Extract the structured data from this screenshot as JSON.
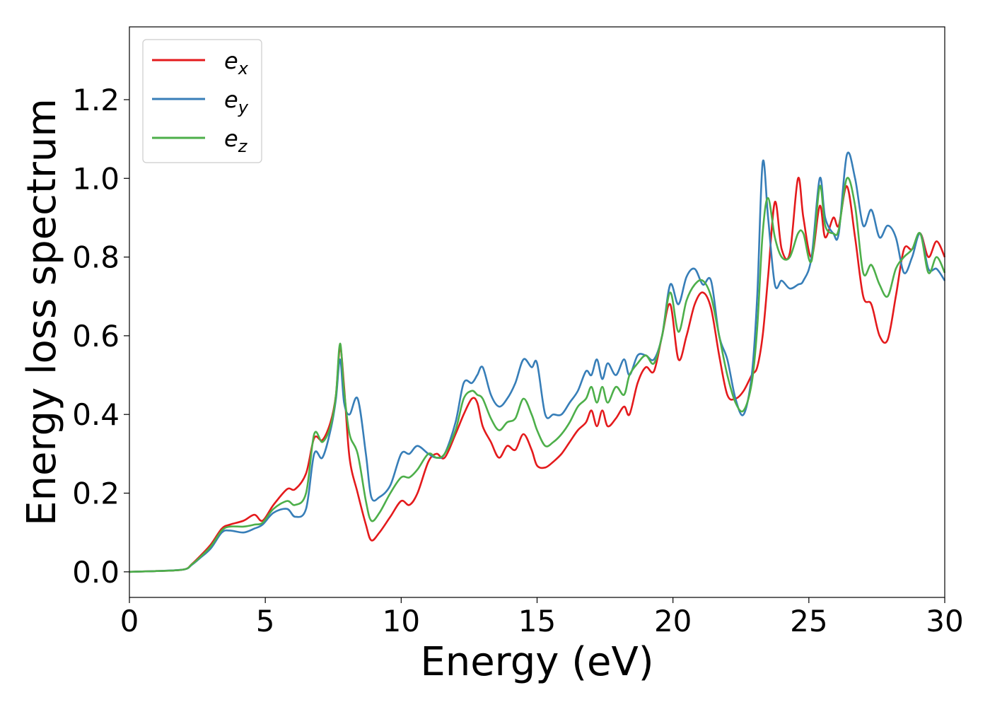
{
  "chart_data": {
    "type": "line",
    "title": "",
    "xlabel": "Energy (eV)",
    "ylabel": "Energy loss spectrum",
    "xlim": [
      0,
      30
    ],
    "ylim": [
      -0.065,
      1.385
    ],
    "xticks": [
      0,
      5,
      10,
      15,
      20,
      25,
      30
    ],
    "xtick_labels": [
      "0",
      "5",
      "10",
      "15",
      "20",
      "25",
      "30"
    ],
    "yticks": [
      0.0,
      0.2,
      0.4,
      0.6,
      0.8,
      1.0,
      1.2
    ],
    "ytick_labels": [
      "0.0",
      "0.2",
      "0.4",
      "0.6",
      "0.8",
      "1.0",
      "1.2"
    ],
    "grid": false,
    "legend": "top-left",
    "series": [
      {
        "name": "e_x",
        "label_main": "e",
        "label_sub": "x",
        "color": "#e41a1c",
        "x": [
          0,
          1,
          2,
          2.3,
          2.6,
          3.0,
          3.4,
          3.7,
          4.2,
          4.6,
          4.9,
          5.3,
          5.8,
          6.1,
          6.5,
          6.8,
          7.1,
          7.4,
          7.6,
          7.75,
          7.9,
          8.1,
          8.4,
          8.7,
          8.9,
          9.2,
          9.6,
          10.0,
          10.3,
          10.6,
          11.0,
          11.3,
          11.6,
          12.0,
          12.3,
          12.6,
          12.8,
          13.0,
          13.3,
          13.6,
          13.9,
          14.2,
          14.5,
          14.8,
          15.0,
          15.3,
          15.6,
          15.9,
          16.2,
          16.5,
          16.8,
          17.0,
          17.2,
          17.4,
          17.6,
          17.9,
          18.2,
          18.4,
          18.7,
          19.0,
          19.3,
          19.6,
          19.9,
          20.2,
          20.5,
          20.8,
          21.1,
          21.4,
          21.7,
          22.0,
          22.3,
          22.6,
          22.9,
          23.1,
          23.3,
          23.5,
          23.75,
          24.0,
          24.3,
          24.6,
          24.8,
          25.1,
          25.4,
          25.6,
          25.9,
          26.1,
          26.4,
          26.7,
          27.0,
          27.3,
          27.6,
          27.9,
          28.2,
          28.5,
          28.8,
          29.1,
          29.4,
          29.7,
          30.0
        ],
        "y": [
          0,
          0.002,
          0.006,
          0.02,
          0.04,
          0.07,
          0.11,
          0.12,
          0.13,
          0.145,
          0.13,
          0.17,
          0.21,
          0.21,
          0.25,
          0.34,
          0.335,
          0.38,
          0.45,
          0.57,
          0.47,
          0.29,
          0.2,
          0.12,
          0.08,
          0.1,
          0.14,
          0.18,
          0.17,
          0.2,
          0.28,
          0.3,
          0.29,
          0.35,
          0.4,
          0.44,
          0.43,
          0.37,
          0.33,
          0.29,
          0.32,
          0.31,
          0.35,
          0.31,
          0.27,
          0.265,
          0.28,
          0.3,
          0.33,
          0.36,
          0.38,
          0.41,
          0.37,
          0.41,
          0.37,
          0.39,
          0.42,
          0.4,
          0.48,
          0.52,
          0.51,
          0.6,
          0.68,
          0.54,
          0.6,
          0.68,
          0.71,
          0.67,
          0.55,
          0.45,
          0.44,
          0.46,
          0.5,
          0.52,
          0.6,
          0.75,
          0.94,
          0.82,
          0.81,
          1.0,
          0.9,
          0.8,
          0.93,
          0.85,
          0.9,
          0.88,
          0.98,
          0.85,
          0.7,
          0.68,
          0.6,
          0.59,
          0.7,
          0.82,
          0.82,
          0.86,
          0.8,
          0.84,
          0.8
        ]
      },
      {
        "name": "e_y",
        "label_main": "e",
        "label_sub": "y",
        "color": "#377eb8",
        "x": [
          0,
          1,
          2,
          2.3,
          2.6,
          3.0,
          3.4,
          3.7,
          4.2,
          4.6,
          4.9,
          5.3,
          5.8,
          6.1,
          6.5,
          6.8,
          7.1,
          7.4,
          7.6,
          7.75,
          7.9,
          8.1,
          8.4,
          8.7,
          8.9,
          9.2,
          9.6,
          10.0,
          10.3,
          10.6,
          11.0,
          11.3,
          11.6,
          12.0,
          12.3,
          12.6,
          12.8,
          13.0,
          13.3,
          13.6,
          13.9,
          14.2,
          14.5,
          14.8,
          15.0,
          15.3,
          15.6,
          15.9,
          16.2,
          16.5,
          16.8,
          17.0,
          17.2,
          17.4,
          17.6,
          17.9,
          18.2,
          18.4,
          18.7,
          19.0,
          19.3,
          19.6,
          19.9,
          20.2,
          20.5,
          20.8,
          21.1,
          21.4,
          21.7,
          22.0,
          22.3,
          22.6,
          22.9,
          23.1,
          23.3,
          23.5,
          23.75,
          24.0,
          24.3,
          24.6,
          24.8,
          25.1,
          25.4,
          25.6,
          25.9,
          26.1,
          26.4,
          26.7,
          27.0,
          27.3,
          27.6,
          27.9,
          28.2,
          28.5,
          28.8,
          29.1,
          29.4,
          29.7,
          30.0
        ],
        "y": [
          0,
          0.002,
          0.006,
          0.018,
          0.035,
          0.06,
          0.1,
          0.105,
          0.1,
          0.11,
          0.12,
          0.15,
          0.16,
          0.14,
          0.16,
          0.3,
          0.29,
          0.36,
          0.44,
          0.54,
          0.43,
          0.4,
          0.44,
          0.3,
          0.19,
          0.19,
          0.22,
          0.3,
          0.3,
          0.32,
          0.3,
          0.29,
          0.3,
          0.38,
          0.48,
          0.48,
          0.5,
          0.52,
          0.45,
          0.42,
          0.44,
          0.48,
          0.54,
          0.52,
          0.53,
          0.4,
          0.4,
          0.4,
          0.43,
          0.46,
          0.51,
          0.5,
          0.54,
          0.49,
          0.53,
          0.5,
          0.54,
          0.5,
          0.55,
          0.55,
          0.54,
          0.6,
          0.73,
          0.68,
          0.75,
          0.77,
          0.73,
          0.74,
          0.6,
          0.54,
          0.44,
          0.4,
          0.5,
          0.7,
          1.04,
          0.9,
          0.73,
          0.74,
          0.72,
          0.73,
          0.74,
          0.8,
          1.0,
          0.9,
          0.86,
          0.86,
          1.06,
          1.0,
          0.88,
          0.92,
          0.85,
          0.88,
          0.85,
          0.76,
          0.8,
          0.86,
          0.77,
          0.77,
          0.74
        ]
      },
      {
        "name": "e_z",
        "label_main": "e",
        "label_sub": "z",
        "color": "#4daf4a",
        "x": [
          0,
          1,
          2,
          2.3,
          2.6,
          3.0,
          3.4,
          3.7,
          4.2,
          4.6,
          4.9,
          5.3,
          5.8,
          6.1,
          6.5,
          6.8,
          7.1,
          7.4,
          7.6,
          7.75,
          7.9,
          8.1,
          8.4,
          8.7,
          8.9,
          9.2,
          9.6,
          10.0,
          10.3,
          10.6,
          11.0,
          11.3,
          11.6,
          12.0,
          12.3,
          12.6,
          12.8,
          13.0,
          13.3,
          13.6,
          13.9,
          14.2,
          14.5,
          14.8,
          15.0,
          15.3,
          15.6,
          15.9,
          16.2,
          16.5,
          16.8,
          17.0,
          17.2,
          17.4,
          17.6,
          17.9,
          18.2,
          18.4,
          18.7,
          19.0,
          19.3,
          19.6,
          19.9,
          20.2,
          20.5,
          20.8,
          21.1,
          21.4,
          21.7,
          22.0,
          22.3,
          22.6,
          22.9,
          23.1,
          23.3,
          23.5,
          23.75,
          24.0,
          24.3,
          24.6,
          24.8,
          25.1,
          25.4,
          25.6,
          25.9,
          26.1,
          26.4,
          26.7,
          27.0,
          27.3,
          27.6,
          27.9,
          28.2,
          28.5,
          28.8,
          29.1,
          29.4,
          29.7,
          30.0
        ],
        "y": [
          0,
          0.002,
          0.006,
          0.019,
          0.037,
          0.065,
          0.105,
          0.115,
          0.115,
          0.12,
          0.125,
          0.16,
          0.18,
          0.17,
          0.2,
          0.35,
          0.33,
          0.37,
          0.45,
          0.58,
          0.46,
          0.35,
          0.3,
          0.18,
          0.13,
          0.15,
          0.2,
          0.24,
          0.24,
          0.26,
          0.3,
          0.29,
          0.3,
          0.36,
          0.44,
          0.46,
          0.45,
          0.44,
          0.39,
          0.36,
          0.38,
          0.39,
          0.44,
          0.4,
          0.36,
          0.32,
          0.33,
          0.35,
          0.38,
          0.42,
          0.44,
          0.47,
          0.43,
          0.47,
          0.43,
          0.47,
          0.45,
          0.5,
          0.53,
          0.55,
          0.53,
          0.6,
          0.71,
          0.61,
          0.69,
          0.73,
          0.74,
          0.7,
          0.6,
          0.5,
          0.43,
          0.41,
          0.48,
          0.62,
          0.86,
          0.95,
          0.85,
          0.8,
          0.8,
          0.86,
          0.86,
          0.79,
          0.98,
          0.88,
          0.86,
          0.87,
          1.0,
          0.93,
          0.76,
          0.78,
          0.73,
          0.7,
          0.77,
          0.8,
          0.82,
          0.86,
          0.76,
          0.8,
          0.76
        ]
      }
    ]
  }
}
